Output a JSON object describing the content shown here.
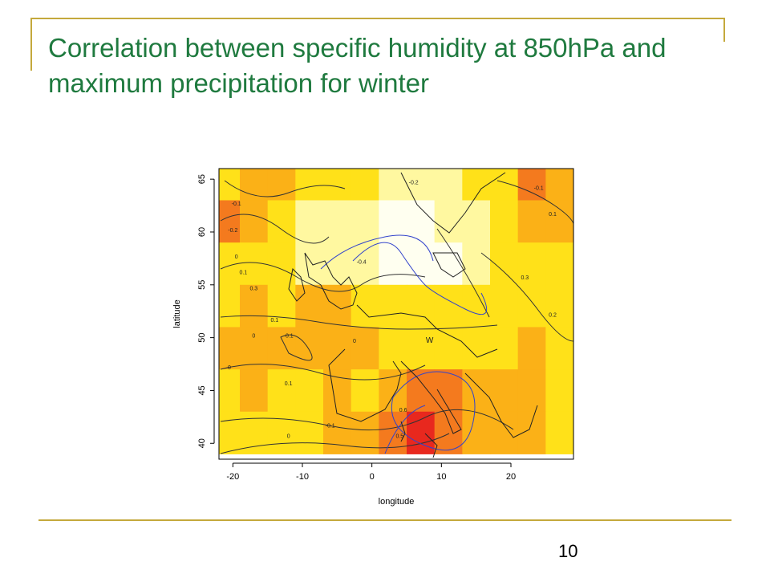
{
  "slide": {
    "title": "Correlation between specific humidity at 850hPa and maximum precipitation for winter",
    "page_number": "10",
    "accent_color": "#c4a93c",
    "title_color": "#1f7a3f"
  },
  "chart_data": {
    "type": "heatmap",
    "title": "",
    "xlabel": "longitude",
    "ylabel": "latitude",
    "xlim": [
      -22,
      29
    ],
    "ylim": [
      38.5,
      66
    ],
    "x_ticks": [
      -20,
      -10,
      0,
      10,
      20
    ],
    "y_ticks": [
      40,
      45,
      50,
      55,
      60,
      65
    ],
    "color_scale": [
      "#e8281e",
      "#f47a1e",
      "#fbb117",
      "#ffe119",
      "#fff8a0",
      "#fffff0"
    ],
    "cells": [
      [
        -21,
        65,
        3
      ],
      [
        -17,
        65,
        2
      ],
      [
        -13,
        65,
        2
      ],
      [
        -9,
        65,
        3
      ],
      [
        -5,
        65,
        3
      ],
      [
        -1,
        65,
        3
      ],
      [
        3,
        65,
        4
      ],
      [
        7,
        65,
        4
      ],
      [
        11,
        65,
        4
      ],
      [
        15,
        65,
        3
      ],
      [
        19,
        65,
        3
      ],
      [
        23,
        65,
        1
      ],
      [
        27,
        65,
        2
      ],
      [
        -21,
        61,
        1
      ],
      [
        -17,
        61,
        2
      ],
      [
        -13,
        61,
        3
      ],
      [
        -9,
        61,
        4
      ],
      [
        -5,
        61,
        4
      ],
      [
        -1,
        61,
        4
      ],
      [
        3,
        61,
        5
      ],
      [
        7,
        61,
        5
      ],
      [
        11,
        61,
        4
      ],
      [
        15,
        61,
        4
      ],
      [
        19,
        61,
        3
      ],
      [
        23,
        61,
        2
      ],
      [
        27,
        61,
        2
      ],
      [
        -21,
        57,
        3
      ],
      [
        -17,
        57,
        3
      ],
      [
        -13,
        57,
        3
      ],
      [
        -9,
        57,
        4
      ],
      [
        -5,
        57,
        4
      ],
      [
        -1,
        57,
        4
      ],
      [
        3,
        57,
        5
      ],
      [
        7,
        57,
        5
      ],
      [
        11,
        57,
        5
      ],
      [
        15,
        57,
        4
      ],
      [
        19,
        57,
        3
      ],
      [
        23,
        57,
        3
      ],
      [
        27,
        57,
        3
      ],
      [
        -21,
        53,
        3
      ],
      [
        -17,
        53,
        2
      ],
      [
        -13,
        53,
        3
      ],
      [
        -9,
        53,
        2
      ],
      [
        -5,
        53,
        2
      ],
      [
        -1,
        53,
        3
      ],
      [
        3,
        53,
        3
      ],
      [
        7,
        53,
        3
      ],
      [
        11,
        53,
        3
      ],
      [
        15,
        53,
        3
      ],
      [
        19,
        53,
        3
      ],
      [
        23,
        53,
        3
      ],
      [
        27,
        53,
        3
      ],
      [
        -21,
        49,
        2
      ],
      [
        -17,
        49,
        2
      ],
      [
        -13,
        49,
        2
      ],
      [
        -9,
        49,
        2
      ],
      [
        -5,
        49,
        2
      ],
      [
        -1,
        49,
        2
      ],
      [
        3,
        49,
        3
      ],
      [
        7,
        49,
        3
      ],
      [
        11,
        49,
        3
      ],
      [
        15,
        49,
        3
      ],
      [
        19,
        49,
        3
      ],
      [
        23,
        49,
        2
      ],
      [
        27,
        49,
        3
      ],
      [
        -21,
        45,
        3
      ],
      [
        -17,
        45,
        2
      ],
      [
        -13,
        45,
        3
      ],
      [
        -9,
        45,
        3
      ],
      [
        -5,
        45,
        2
      ],
      [
        -1,
        45,
        3
      ],
      [
        3,
        45,
        2
      ],
      [
        7,
        45,
        1
      ],
      [
        11,
        45,
        1
      ],
      [
        15,
        45,
        2
      ],
      [
        19,
        45,
        2
      ],
      [
        23,
        45,
        2
      ],
      [
        27,
        45,
        3
      ],
      [
        -21,
        41,
        3
      ],
      [
        -17,
        41,
        3
      ],
      [
        -13,
        41,
        3
      ],
      [
        -9,
        41,
        3
      ],
      [
        -5,
        41,
        2
      ],
      [
        -1,
        41,
        2
      ],
      [
        3,
        41,
        1
      ],
      [
        7,
        41,
        0
      ],
      [
        11,
        41,
        1
      ],
      [
        15,
        41,
        2
      ],
      [
        19,
        41,
        2
      ],
      [
        23,
        41,
        2
      ],
      [
        27,
        41,
        3
      ]
    ],
    "annotations": [
      {
        "text": "-0.2",
        "x": -20,
        "y": 60
      },
      {
        "text": "-0.1",
        "x": -19.5,
        "y": 62.5
      },
      {
        "text": "0",
        "x": -19.5,
        "y": 57.5
      },
      {
        "text": "0.1",
        "x": -18.5,
        "y": 56
      },
      {
        "text": "0.3",
        "x": -17,
        "y": 54.5
      },
      {
        "text": "0.1",
        "x": -14,
        "y": 51.5
      },
      {
        "text": "-0.1",
        "x": -12,
        "y": 50
      },
      {
        "text": "0",
        "x": -17,
        "y": 50
      },
      {
        "text": "0",
        "x": -20.5,
        "y": 47
      },
      {
        "text": "0.1",
        "x": -12,
        "y": 45.5
      },
      {
        "text": "-0.4",
        "x": -1.5,
        "y": 57
      },
      {
        "text": "-0.2",
        "x": 6,
        "y": 64.5
      },
      {
        "text": "-0.1",
        "x": 24,
        "y": 64
      },
      {
        "text": "0.1",
        "x": 26,
        "y": 61.5
      },
      {
        "text": "0.3",
        "x": 22,
        "y": 55.5
      },
      {
        "text": "0.2",
        "x": 26,
        "y": 52
      },
      {
        "text": "0",
        "x": -2.5,
        "y": 49.5
      },
      {
        "text": "W",
        "x": 8.3,
        "y": 49.5
      },
      {
        "text": "-0.1",
        "x": -6,
        "y": 41.5
      },
      {
        "text": "0",
        "x": -12,
        "y": 40.5
      },
      {
        "text": "0.5",
        "x": 4,
        "y": 40.5
      },
      {
        "text": "0.6",
        "x": 4.5,
        "y": 43
      }
    ]
  }
}
